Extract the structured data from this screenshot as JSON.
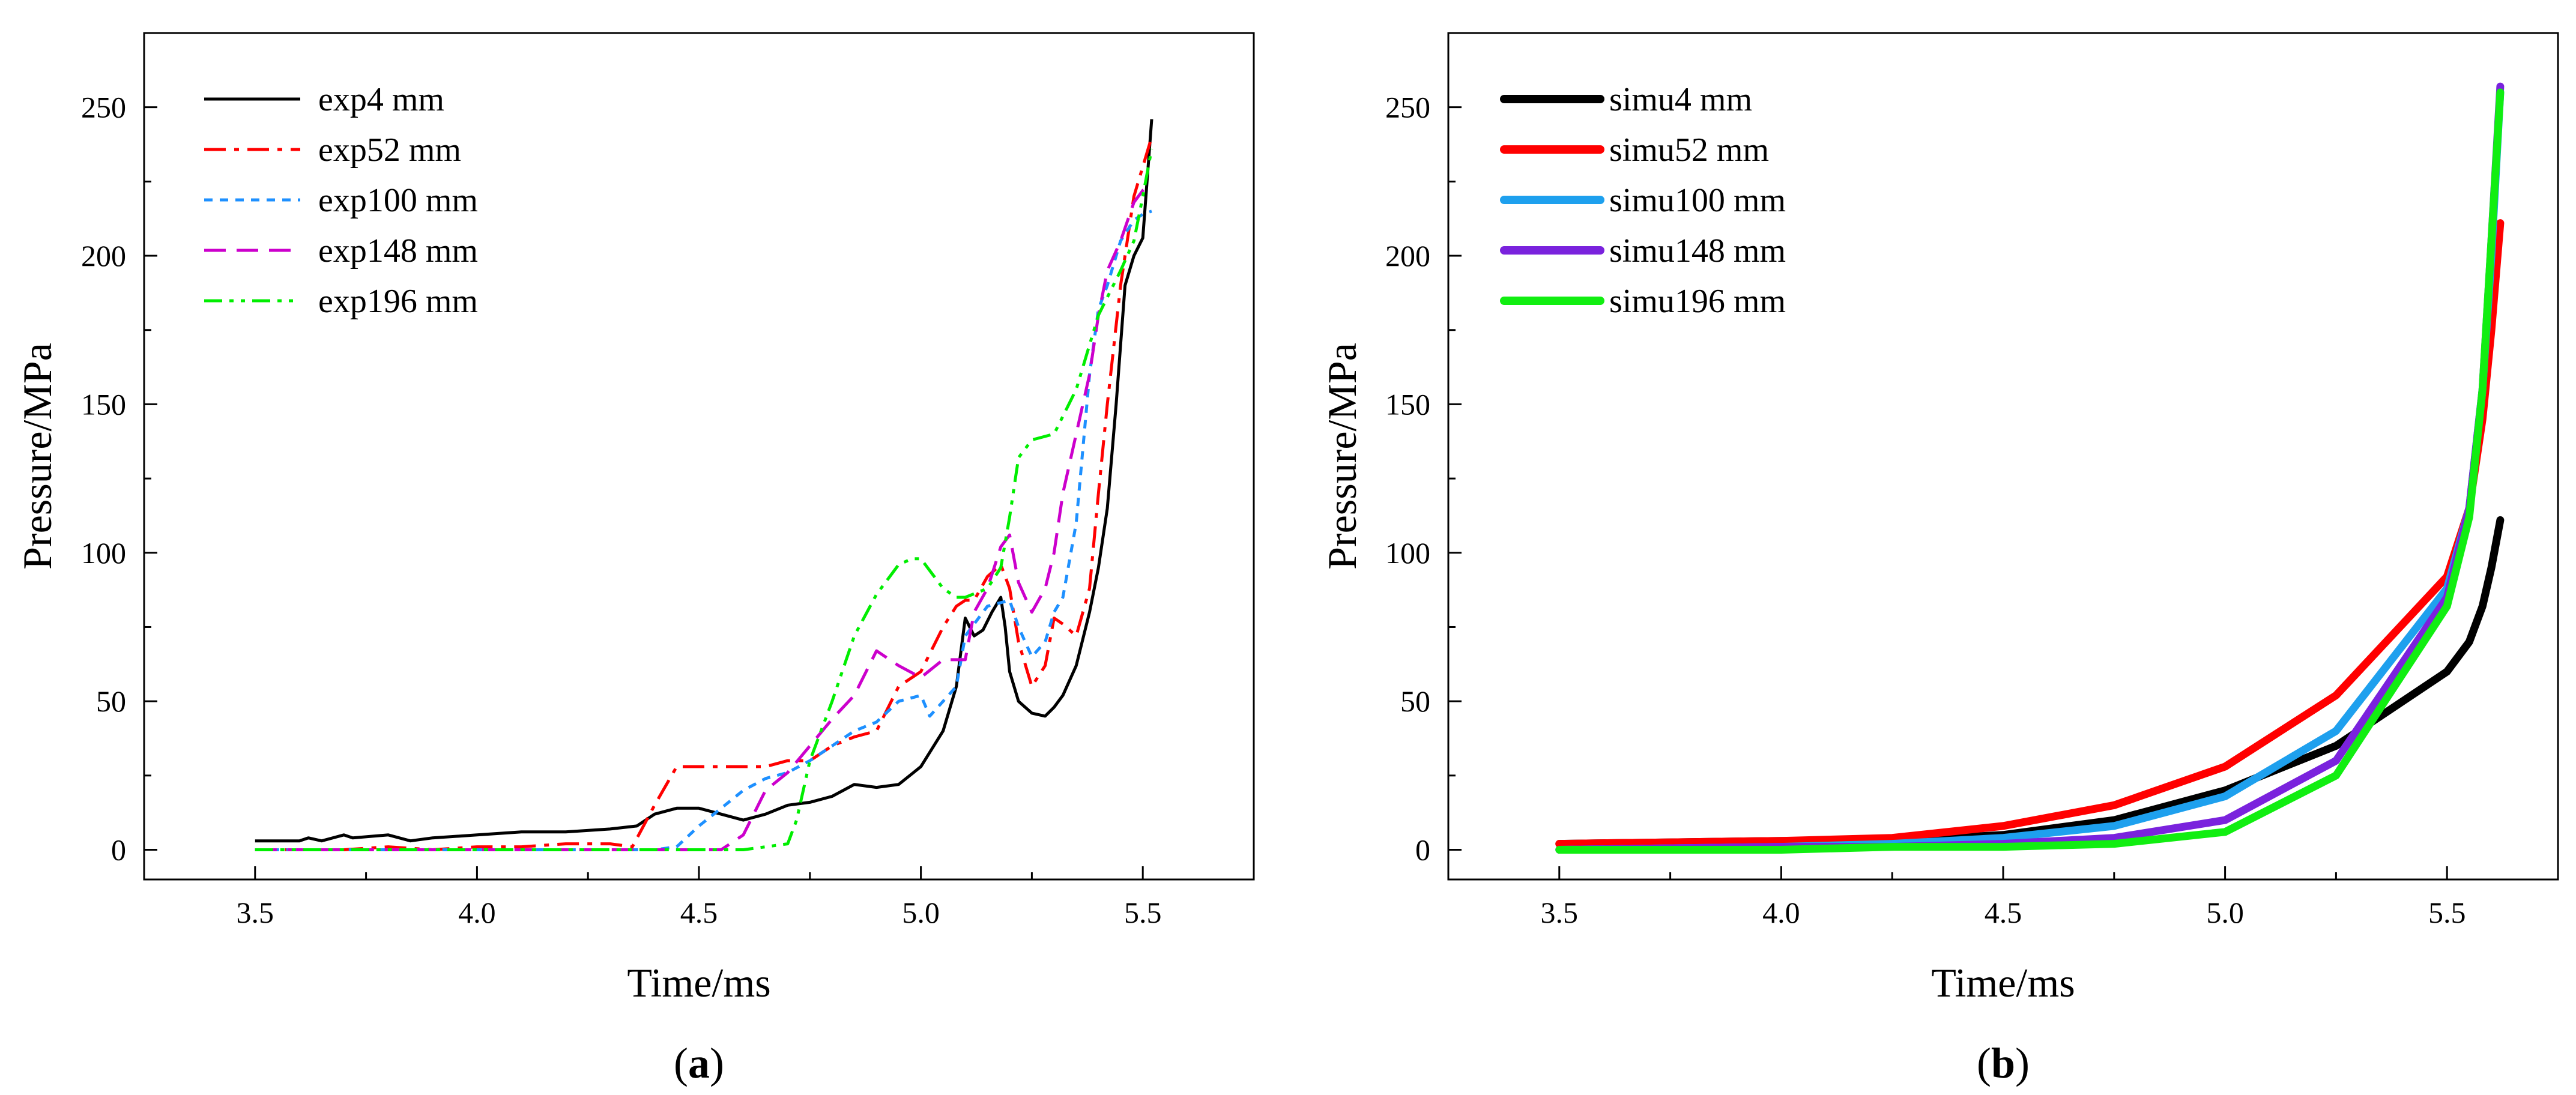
{
  "chart_data": [
    {
      "type": "line",
      "panel_label": "a",
      "xlabel": "Time/ms",
      "ylabel": "Pressure/MPa",
      "xlim": [
        3.25,
        5.75
      ],
      "ylim": [
        -10,
        275
      ],
      "xticks": [
        "3.5",
        "4.0",
        "4.5",
        "5.0",
        "5.5"
      ],
      "yticks": [
        "0",
        "50",
        "100",
        "150",
        "200",
        "250"
      ],
      "legend_position": "top-left",
      "series": [
        {
          "name": "exp4 mm",
          "color": "#000000",
          "dash": "solid",
          "x": [
            3.5,
            3.6,
            3.62,
            3.65,
            3.7,
            3.72,
            3.8,
            3.85,
            3.9,
            4.0,
            4.1,
            4.2,
            4.3,
            4.36,
            4.4,
            4.45,
            4.5,
            4.55,
            4.6,
            4.65,
            4.7,
            4.75,
            4.8,
            4.85,
            4.9,
            4.95,
            5.0,
            5.05,
            5.08,
            5.1,
            5.12,
            5.14,
            5.16,
            5.18,
            5.19,
            5.2,
            5.22,
            5.25,
            5.28,
            5.3,
            5.32,
            5.35,
            5.38,
            5.4,
            5.42,
            5.44,
            5.46,
            5.48,
            5.5,
            5.52
          ],
          "y": [
            3,
            3,
            4,
            3,
            5,
            4,
            5,
            3,
            4,
            5,
            6,
            6,
            7,
            8,
            12,
            14,
            14,
            12,
            10,
            12,
            15,
            16,
            18,
            22,
            21,
            22,
            28,
            40,
            55,
            78,
            72,
            74,
            80,
            85,
            75,
            60,
            50,
            46,
            45,
            48,
            52,
            62,
            80,
            95,
            115,
            150,
            190,
            200,
            206,
            246
          ]
        },
        {
          "name": "exp52 mm",
          "color": "#ff0000",
          "dash": "dashdot",
          "x": [
            3.5,
            3.6,
            3.7,
            3.8,
            3.9,
            4.0,
            4.1,
            4.2,
            4.3,
            4.35,
            4.4,
            4.45,
            4.5,
            4.55,
            4.6,
            4.65,
            4.7,
            4.75,
            4.8,
            4.85,
            4.9,
            4.95,
            5.0,
            5.05,
            5.08,
            5.1,
            5.12,
            5.15,
            5.18,
            5.2,
            5.22,
            5.25,
            5.28,
            5.3,
            5.32,
            5.35,
            5.38,
            5.4,
            5.42,
            5.45,
            5.48,
            5.5,
            5.52
          ],
          "y": [
            0,
            0,
            0,
            1,
            0,
            1,
            1,
            2,
            2,
            1,
            15,
            28,
            28,
            28,
            28,
            28,
            30,
            30,
            35,
            38,
            40,
            55,
            60,
            75,
            82,
            84,
            84,
            92,
            96,
            88,
            70,
            55,
            62,
            78,
            76,
            72,
            88,
            120,
            150,
            190,
            220,
            230,
            240
          ]
        },
        {
          "name": "exp100 mm",
          "color": "#1e90ff",
          "dash": "dash-short",
          "x": [
            3.5,
            3.6,
            3.7,
            3.8,
            3.9,
            4.0,
            4.1,
            4.2,
            4.3,
            4.4,
            4.45,
            4.5,
            4.55,
            4.6,
            4.65,
            4.7,
            4.75,
            4.8,
            4.85,
            4.9,
            4.95,
            5.0,
            5.02,
            5.05,
            5.08,
            5.1,
            5.15,
            5.2,
            5.22,
            5.25,
            5.28,
            5.3,
            5.32,
            5.35,
            5.38,
            5.4,
            5.42,
            5.45,
            5.48,
            5.5,
            5.52
          ],
          "y": [
            0,
            0,
            0,
            0,
            0,
            0,
            0,
            0,
            0,
            0,
            1,
            8,
            14,
            20,
            24,
            26,
            30,
            35,
            40,
            43,
            50,
            52,
            45,
            50,
            55,
            72,
            82,
            84,
            75,
            65,
            70,
            80,
            85,
            110,
            160,
            182,
            190,
            205,
            212,
            214,
            215
          ]
        },
        {
          "name": "exp148 mm",
          "color": "#cc00cc",
          "dash": "dash-long",
          "x": [
            3.5,
            3.6,
            3.7,
            3.8,
            3.9,
            4.0,
            4.1,
            4.2,
            4.3,
            4.4,
            4.5,
            4.55,
            4.6,
            4.65,
            4.7,
            4.75,
            4.8,
            4.85,
            4.9,
            4.95,
            5.0,
            5.05,
            5.1,
            5.12,
            5.15,
            5.18,
            5.2,
            5.22,
            5.25,
            5.28,
            5.3,
            5.32,
            5.35,
            5.38,
            5.4,
            5.42,
            5.45,
            5.48,
            5.5,
            5.52
          ],
          "y": [
            0,
            0,
            0,
            0,
            0,
            0,
            0,
            0,
            0,
            0,
            0,
            0,
            5,
            20,
            26,
            35,
            44,
            52,
            67,
            62,
            58,
            64,
            64,
            80,
            88,
            102,
            106,
            90,
            80,
            88,
            100,
            120,
            140,
            160,
            180,
            195,
            205,
            218,
            222,
            224
          ]
        },
        {
          "name": "exp196 mm",
          "color": "#00ee00",
          "dash": "dashdotdot",
          "x": [
            3.5,
            3.6,
            3.7,
            3.8,
            3.9,
            4.0,
            4.1,
            4.2,
            4.3,
            4.4,
            4.5,
            4.6,
            4.65,
            4.7,
            4.72,
            4.75,
            4.8,
            4.85,
            4.9,
            4.95,
            4.98,
            5.0,
            5.05,
            5.08,
            5.1,
            5.15,
            5.18,
            5.2,
            5.22,
            5.25,
            5.3,
            5.35,
            5.38,
            5.4,
            5.45,
            5.48,
            5.5,
            5.52
          ],
          "y": [
            0,
            0,
            0,
            0,
            0,
            0,
            0,
            0,
            0,
            0,
            0,
            0,
            1,
            2,
            10,
            30,
            50,
            72,
            86,
            96,
            98,
            98,
            88,
            85,
            85,
            88,
            95,
            112,
            132,
            138,
            140,
            155,
            170,
            180,
            195,
            205,
            220,
            236
          ]
        }
      ]
    },
    {
      "type": "line",
      "panel_label": "b",
      "xlabel": "Time/ms",
      "ylabel": "Pressure/MPa",
      "xlim": [
        3.25,
        5.75
      ],
      "ylim": [
        -10,
        275
      ],
      "xticks": [
        "3.5",
        "4.0",
        "4.5",
        "5.0",
        "5.5"
      ],
      "yticks": [
        "0",
        "50",
        "100",
        "150",
        "200",
        "250"
      ],
      "legend_position": "top-left",
      "series": [
        {
          "name": "simu4 mm",
          "color": "#000000",
          "x": [
            3.5,
            4.0,
            4.25,
            4.5,
            4.75,
            5.0,
            5.25,
            5.5,
            5.55,
            5.58,
            5.6,
            5.62
          ],
          "y": [
            2,
            3,
            3,
            5,
            10,
            20,
            35,
            60,
            70,
            82,
            95,
            111
          ]
        },
        {
          "name": "simu52 mm",
          "color": "#ff0000",
          "x": [
            3.5,
            4.0,
            4.25,
            4.5,
            4.75,
            5.0,
            5.25,
            5.5,
            5.55,
            5.58,
            5.6,
            5.62
          ],
          "y": [
            2,
            3,
            4,
            8,
            15,
            28,
            52,
            92,
            115,
            145,
            175,
            211
          ]
        },
        {
          "name": "simu100 mm",
          "color": "#1ea0ee",
          "x": [
            3.5,
            4.0,
            4.25,
            4.5,
            4.75,
            5.0,
            5.25,
            5.5,
            5.55,
            5.58,
            5.6,
            5.62
          ],
          "y": [
            0,
            1,
            2,
            4,
            8,
            18,
            40,
            88,
            115,
            155,
            200,
            255
          ]
        },
        {
          "name": "simu148 mm",
          "color": "#7a22dd",
          "x": [
            3.5,
            4.0,
            4.25,
            4.5,
            4.75,
            5.0,
            5.25,
            5.5,
            5.55,
            5.58,
            5.6,
            5.62
          ],
          "y": [
            0,
            1,
            1,
            2,
            4,
            10,
            30,
            85,
            115,
            155,
            205,
            257
          ]
        },
        {
          "name": "simu196 mm",
          "color": "#11ee11",
          "x": [
            3.5,
            4.0,
            4.25,
            4.5,
            4.75,
            5.0,
            5.25,
            5.5,
            5.55,
            5.58,
            5.6,
            5.62
          ],
          "y": [
            0,
            0,
            1,
            1,
            2,
            6,
            25,
            82,
            112,
            155,
            205,
            255
          ]
        }
      ]
    }
  ]
}
